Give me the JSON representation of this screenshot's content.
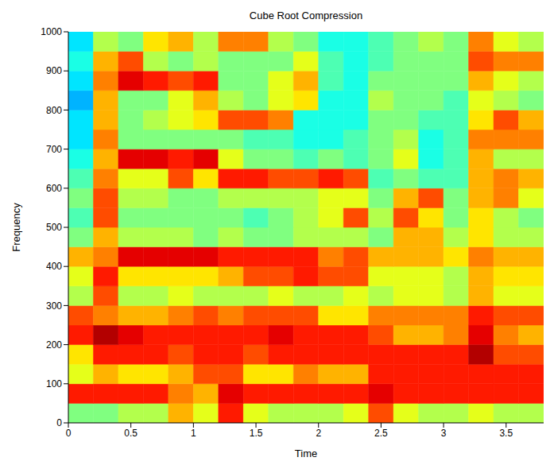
{
  "chart_data": {
    "type": "heatmap",
    "title": "Cube Root Compression",
    "x_label": "Time",
    "y_label": "Frequency",
    "xlim": [
      0,
      3.8
    ],
    "ylim": [
      0,
      1000
    ],
    "xticks": [
      0,
      0.5,
      1,
      1.5,
      2,
      2.5,
      3,
      3.5
    ],
    "yticks": [
      0,
      100,
      200,
      300,
      400,
      500,
      600,
      700,
      800,
      900,
      1000
    ],
    "x_bins": [
      0,
      0.2,
      0.4,
      0.6,
      0.8,
      1.0,
      1.2,
      1.4,
      1.6,
      1.8,
      2.0,
      2.2,
      2.4,
      2.6,
      2.8,
      3.0,
      3.2,
      3.4,
      3.6,
      3.8
    ],
    "y_bins": [
      0,
      50,
      100,
      150,
      200,
      250,
      300,
      350,
      400,
      450,
      500,
      550,
      600,
      650,
      700,
      750,
      800,
      850,
      900,
      950,
      1000
    ],
    "color_range": [
      0,
      1
    ],
    "cells": [
      [
        0.5,
        0.5,
        0.55,
        0.55,
        0.7,
        0.6,
        0.85,
        0.6,
        0.55,
        0.55,
        0.55,
        0.6,
        0.8,
        0.6,
        0.55,
        0.55,
        0.6,
        0.55,
        0.55
      ],
      [
        0.85,
        0.85,
        0.85,
        0.85,
        0.75,
        0.7,
        0.9,
        0.85,
        0.85,
        0.85,
        0.85,
        0.85,
        0.9,
        0.85,
        0.85,
        0.85,
        0.85,
        0.85,
        0.85
      ],
      [
        0.6,
        0.7,
        0.65,
        0.65,
        0.7,
        0.8,
        0.8,
        0.65,
        0.65,
        0.75,
        0.7,
        0.7,
        0.85,
        0.85,
        0.85,
        0.85,
        0.85,
        0.85,
        0.85
      ],
      [
        0.65,
        0.85,
        0.85,
        0.85,
        0.8,
        0.85,
        0.85,
        0.8,
        0.85,
        0.85,
        0.85,
        0.85,
        0.85,
        0.85,
        0.85,
        0.85,
        0.95,
        0.8,
        0.8
      ],
      [
        0.85,
        0.95,
        0.9,
        0.85,
        0.85,
        0.85,
        0.85,
        0.85,
        0.9,
        0.85,
        0.85,
        0.85,
        0.8,
        0.7,
        0.7,
        0.75,
        0.9,
        0.75,
        0.7
      ],
      [
        0.8,
        0.75,
        0.7,
        0.7,
        0.75,
        0.8,
        0.75,
        0.8,
        0.8,
        0.8,
        0.65,
        0.65,
        0.75,
        0.75,
        0.75,
        0.75,
        0.85,
        0.8,
        0.8
      ],
      [
        0.55,
        0.8,
        0.55,
        0.55,
        0.6,
        0.55,
        0.55,
        0.55,
        0.6,
        0.55,
        0.55,
        0.6,
        0.55,
        0.6,
        0.6,
        0.55,
        0.7,
        0.6,
        0.6
      ],
      [
        0.6,
        0.85,
        0.65,
        0.65,
        0.65,
        0.65,
        0.7,
        0.8,
        0.8,
        0.85,
        0.8,
        0.8,
        0.6,
        0.6,
        0.6,
        0.55,
        0.7,
        0.65,
        0.65
      ],
      [
        0.7,
        0.75,
        0.9,
        0.9,
        0.9,
        0.9,
        0.85,
        0.85,
        0.85,
        0.85,
        0.75,
        0.8,
        0.7,
        0.7,
        0.7,
        0.65,
        0.75,
        0.7,
        0.7
      ],
      [
        0.5,
        0.7,
        0.55,
        0.55,
        0.55,
        0.5,
        0.55,
        0.5,
        0.5,
        0.55,
        0.55,
        0.55,
        0.5,
        0.7,
        0.7,
        0.55,
        0.65,
        0.55,
        0.55
      ],
      [
        0.45,
        0.8,
        0.5,
        0.5,
        0.5,
        0.5,
        0.5,
        0.45,
        0.5,
        0.55,
        0.6,
        0.8,
        0.55,
        0.8,
        0.65,
        0.5,
        0.65,
        0.55,
        0.5
      ],
      [
        0.5,
        0.8,
        0.55,
        0.55,
        0.5,
        0.5,
        0.55,
        0.55,
        0.55,
        0.55,
        0.6,
        0.6,
        0.5,
        0.7,
        0.8,
        0.5,
        0.7,
        0.75,
        0.6
      ],
      [
        0.45,
        0.75,
        0.6,
        0.6,
        0.8,
        0.65,
        0.85,
        0.85,
        0.8,
        0.8,
        0.85,
        0.8,
        0.45,
        0.5,
        0.45,
        0.45,
        0.7,
        0.75,
        0.7
      ],
      [
        0.4,
        0.7,
        0.9,
        0.9,
        0.85,
        0.9,
        0.6,
        0.5,
        0.5,
        0.45,
        0.5,
        0.45,
        0.5,
        0.6,
        0.4,
        0.45,
        0.7,
        0.55,
        0.55
      ],
      [
        0.35,
        0.75,
        0.5,
        0.5,
        0.5,
        0.5,
        0.5,
        0.45,
        0.45,
        0.4,
        0.4,
        0.45,
        0.5,
        0.55,
        0.4,
        0.45,
        0.75,
        0.75,
        0.75
      ],
      [
        0.35,
        0.7,
        0.5,
        0.55,
        0.6,
        0.65,
        0.8,
        0.8,
        0.75,
        0.4,
        0.4,
        0.4,
        0.5,
        0.5,
        0.45,
        0.45,
        0.65,
        0.8,
        0.7
      ],
      [
        0.3,
        0.7,
        0.5,
        0.5,
        0.6,
        0.7,
        0.55,
        0.5,
        0.6,
        0.65,
        0.4,
        0.4,
        0.55,
        0.5,
        0.5,
        0.45,
        0.6,
        0.55,
        0.5
      ],
      [
        0.35,
        0.75,
        0.9,
        0.85,
        0.8,
        0.85,
        0.5,
        0.5,
        0.6,
        0.7,
        0.45,
        0.4,
        0.5,
        0.5,
        0.5,
        0.5,
        0.7,
        0.6,
        0.55
      ],
      [
        0.4,
        0.7,
        0.8,
        0.55,
        0.5,
        0.55,
        0.5,
        0.5,
        0.5,
        0.6,
        0.45,
        0.4,
        0.45,
        0.5,
        0.5,
        0.5,
        0.8,
        0.75,
        0.75
      ],
      [
        0.35,
        0.55,
        0.5,
        0.65,
        0.7,
        0.55,
        0.75,
        0.75,
        0.55,
        0.5,
        0.4,
        0.4,
        0.45,
        0.5,
        0.55,
        0.5,
        0.75,
        0.6,
        0.55
      ]
    ]
  }
}
